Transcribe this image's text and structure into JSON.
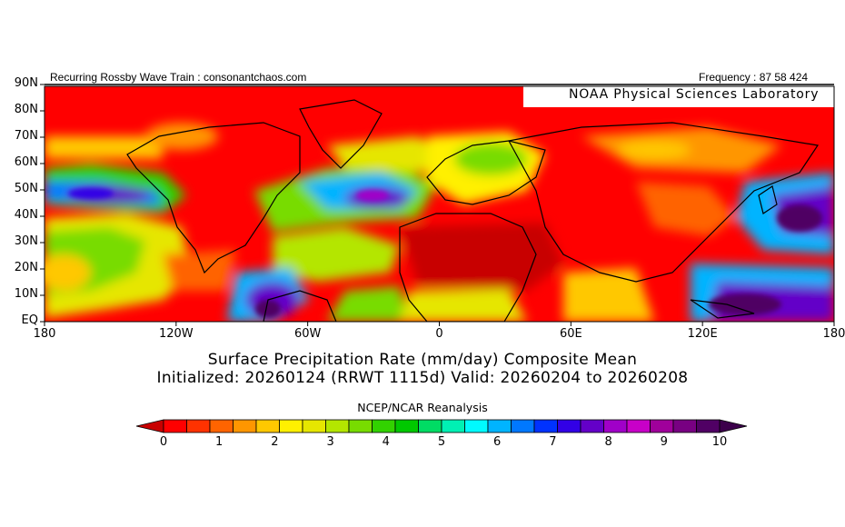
{
  "header": {
    "left_text": "Recurring Rossby Wave Train : consonantchaos.com",
    "right_text": "Frequency : 87 58 424"
  },
  "logo_text": "NOAA Physical Sciences Laboratory",
  "title": "Surface Precipitation Rate (mm/day) Composite Mean",
  "subtitle": "Initialized: 20260124 (RRWT 1115d) Valid: 20260204 to 20260208",
  "dataset_label": "NCEP/NCAR Reanalysis",
  "map": {
    "projection": "equirectangular",
    "lon_range": [
      -180,
      180
    ],
    "lat_range": [
      0,
      90
    ],
    "lat_labels": [
      "90N",
      "80N",
      "70N",
      "60N",
      "50N",
      "40N",
      "30N",
      "20N",
      "10N",
      "EQ"
    ],
    "lon_labels": [
      "180",
      "120W",
      "60W",
      "0",
      "60E",
      "120E",
      "180"
    ]
  },
  "colorbar": {
    "min": 0,
    "max": 10,
    "step": 0.5,
    "tick_labels": [
      "0",
      "1",
      "2",
      "3",
      "4",
      "5",
      "6",
      "7",
      "8",
      "9",
      "10"
    ],
    "colors": [
      "#ff0000",
      "#ff3200",
      "#ff6400",
      "#ff9600",
      "#ffc800",
      "#fff000",
      "#e6e600",
      "#b4e600",
      "#78dc00",
      "#32d200",
      "#00c800",
      "#00dc64",
      "#00f0b4",
      "#00faff",
      "#00b4ff",
      "#0078ff",
      "#0032ff",
      "#3200e6",
      "#6400c8",
      "#a000c8",
      "#c800c8",
      "#a0009b",
      "#780082",
      "#500064"
    ],
    "under_color": "#c80000",
    "over_color": "#3c004b"
  }
}
